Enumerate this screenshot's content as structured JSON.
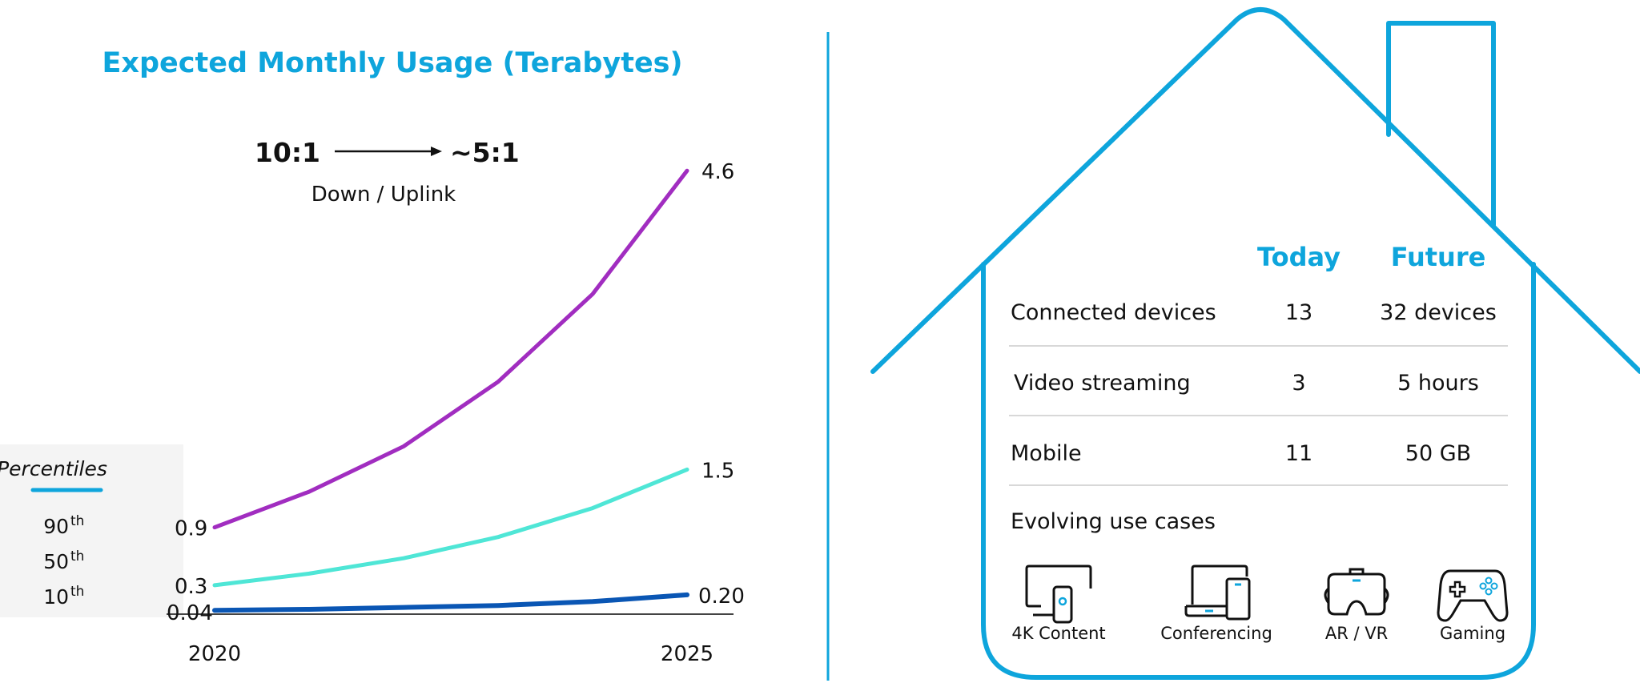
{
  "title": "Expected Monthly Usage (Terabytes)",
  "ratio": {
    "from": "10:1",
    "to": "~5:1",
    "caption": "Down / Uplink"
  },
  "legend": {
    "title": "Percentiles",
    "items": [
      {
        "label": "90",
        "sup": "th"
      },
      {
        "label": "50",
        "sup": "th"
      },
      {
        "label": "10",
        "sup": "th"
      }
    ]
  },
  "chart_data": {
    "type": "line",
    "title": "Expected Monthly Usage (Terabytes)",
    "x": [
      2020,
      2021,
      2022,
      2023,
      2024,
      2025
    ],
    "x_tick_labels": [
      "2020",
      "2025"
    ],
    "ylim": [
      0,
      4.8
    ],
    "grid": false,
    "legend_placement": "left",
    "series": [
      {
        "name": "90th",
        "color": "#a12dc0",
        "values": [
          0.9,
          1.27,
          1.74,
          2.41,
          3.32,
          4.6
        ],
        "start_label": "0.9",
        "end_label": "4.6"
      },
      {
        "name": "50th",
        "color": "#4fe6d6",
        "values": [
          0.3,
          0.42,
          0.58,
          0.8,
          1.1,
          1.5
        ],
        "start_label": "0.3",
        "end_label": "1.5"
      },
      {
        "name": "10th",
        "color": "#0a56b4",
        "values": [
          0.04,
          0.05,
          0.07,
          0.09,
          0.13,
          0.2
        ],
        "start_label": "0.04",
        "end_label": "0.20"
      }
    ]
  },
  "house": {
    "accent": "#0ea5dc",
    "headers": {
      "today": "Today",
      "future": "Future"
    },
    "rows": [
      {
        "label": "Connected devices",
        "today": "13",
        "future": "32 devices"
      },
      {
        "label": "Video streaming",
        "today": "3",
        "future": "5 hours"
      },
      {
        "label": "Mobile",
        "today": "11",
        "future": "50 GB"
      }
    ],
    "use_cases_title": "Evolving use cases",
    "use_cases": [
      {
        "icon": "tv-remote-icon",
        "label": "4K Content"
      },
      {
        "icon": "laptop-phone-icon",
        "label": "Conferencing"
      },
      {
        "icon": "vr-headset-icon",
        "label": "AR / VR"
      },
      {
        "icon": "gamepad-icon",
        "label": "Gaming"
      }
    ]
  }
}
